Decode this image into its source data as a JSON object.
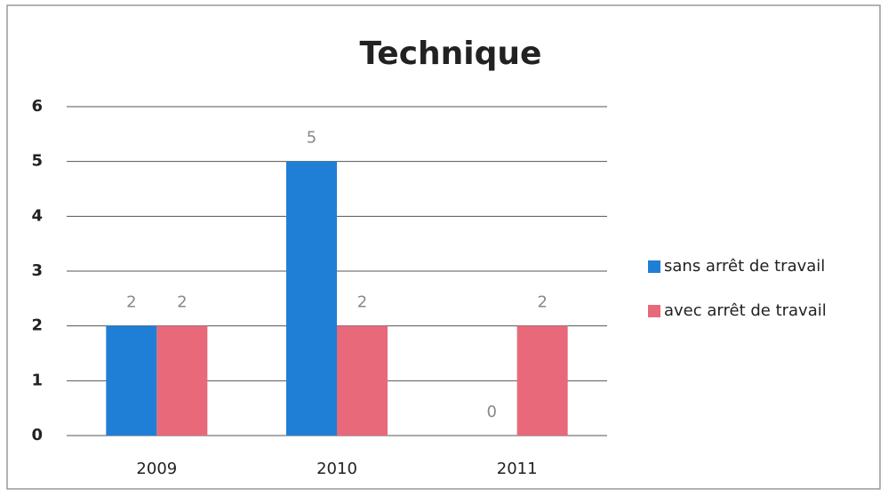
{
  "chart_data": {
    "type": "bar",
    "title": "Technique",
    "categories": [
      "2009",
      "2010",
      "2011"
    ],
    "series": [
      {
        "name": "sans arrêt de travail",
        "color": "#1f7fd6",
        "values": [
          2,
          5,
          0
        ]
      },
      {
        "name": "avec arrêt de travail",
        "color": "#e8697a",
        "values": [
          2,
          2,
          2
        ]
      }
    ],
    "ylim": [
      0,
      6
    ],
    "yticks": [
      0,
      1,
      2,
      3,
      4,
      5,
      6
    ],
    "grid": true,
    "legend": "right"
  }
}
